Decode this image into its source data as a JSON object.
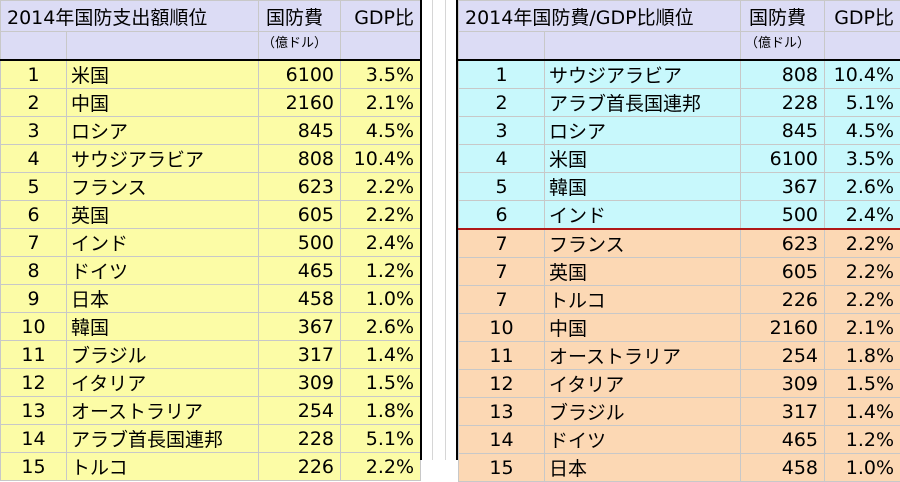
{
  "left": {
    "title": "2014年国防支出額順位",
    "col_spend": "国防費",
    "col_gdp": "GDP比",
    "unit": "（億ドル）",
    "rows": [
      {
        "rank": "1",
        "country": "米国",
        "spend": "6100",
        "gdp": "3.5%"
      },
      {
        "rank": "2",
        "country": "中国",
        "spend": "2160",
        "gdp": "2.1%"
      },
      {
        "rank": "3",
        "country": "ロシア",
        "spend": "845",
        "gdp": "4.5%"
      },
      {
        "rank": "4",
        "country": "サウジアラビア",
        "spend": "808",
        "gdp": "10.4%"
      },
      {
        "rank": "5",
        "country": "フランス",
        "spend": "623",
        "gdp": "2.2%"
      },
      {
        "rank": "6",
        "country": "英国",
        "spend": "605",
        "gdp": "2.2%"
      },
      {
        "rank": "7",
        "country": "インド",
        "spend": "500",
        "gdp": "2.4%"
      },
      {
        "rank": "8",
        "country": "ドイツ",
        "spend": "465",
        "gdp": "1.2%"
      },
      {
        "rank": "9",
        "country": "日本",
        "spend": "458",
        "gdp": "1.0%"
      },
      {
        "rank": "10",
        "country": "韓国",
        "spend": "367",
        "gdp": "2.6%"
      },
      {
        "rank": "11",
        "country": "ブラジル",
        "spend": "317",
        "gdp": "1.4%"
      },
      {
        "rank": "12",
        "country": "イタリア",
        "spend": "309",
        "gdp": "1.5%"
      },
      {
        "rank": "13",
        "country": "オーストラリア",
        "spend": "254",
        "gdp": "1.8%"
      },
      {
        "rank": "14",
        "country": "アラブ首長国連邦",
        "spend": "228",
        "gdp": "5.1%"
      },
      {
        "rank": "15",
        "country": "トルコ",
        "spend": "226",
        "gdp": "2.2%"
      }
    ]
  },
  "right": {
    "title": "2014年国防費/GDP比順位",
    "col_spend": "国防費",
    "col_gdp": "GDP比",
    "unit": "（億ドル）",
    "rows": [
      {
        "rank": "1",
        "country": "サウジアラビア",
        "spend": "808",
        "gdp": "10.4%"
      },
      {
        "rank": "2",
        "country": "アラブ首長国連邦",
        "spend": "228",
        "gdp": "5.1%"
      },
      {
        "rank": "3",
        "country": "ロシア",
        "spend": "845",
        "gdp": "4.5%"
      },
      {
        "rank": "4",
        "country": "米国",
        "spend": "6100",
        "gdp": "3.5%"
      },
      {
        "rank": "5",
        "country": "韓国",
        "spend": "367",
        "gdp": "2.6%"
      },
      {
        "rank": "6",
        "country": "インド",
        "spend": "500",
        "gdp": "2.4%"
      },
      {
        "rank": "7",
        "country": "フランス",
        "spend": "623",
        "gdp": "2.2%"
      },
      {
        "rank": "7",
        "country": "英国",
        "spend": "605",
        "gdp": "2.2%"
      },
      {
        "rank": "7",
        "country": "トルコ",
        "spend": "226",
        "gdp": "2.2%"
      },
      {
        "rank": "10",
        "country": "中国",
        "spend": "2160",
        "gdp": "2.1%"
      },
      {
        "rank": "11",
        "country": "オーストラリア",
        "spend": "254",
        "gdp": "1.8%"
      },
      {
        "rank": "12",
        "country": "イタリア",
        "spend": "309",
        "gdp": "1.5%"
      },
      {
        "rank": "13",
        "country": "ブラジル",
        "spend": "317",
        "gdp": "1.4%"
      },
      {
        "rank": "14",
        "country": "ドイツ",
        "spend": "465",
        "gdp": "1.2%"
      },
      {
        "rank": "15",
        "country": "日本",
        "spend": "458",
        "gdp": "1.0%"
      }
    ]
  },
  "colors": {
    "header": "#dcdcf5",
    "left_rows": "#fcfca6",
    "right_top_rows": "#c8f8fc",
    "right_bottom_rows": "#fcd8b4",
    "separator": "#b01818"
  }
}
